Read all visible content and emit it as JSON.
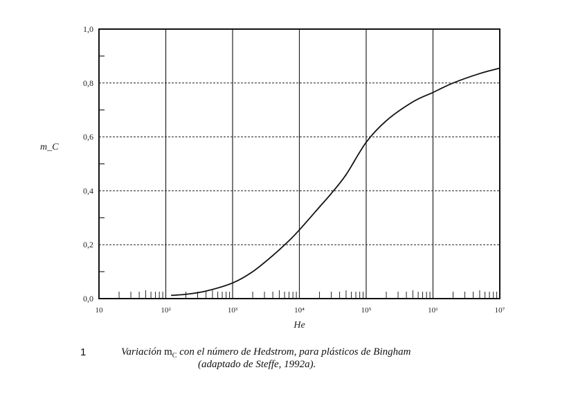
{
  "chart_data": {
    "type": "line",
    "title": "",
    "xlabel": "He",
    "ylabel": "m_C",
    "xscale": "log",
    "xlim": [
      10,
      10000000
    ],
    "ylim": [
      0,
      1
    ],
    "grid": {
      "x": "solid-decades",
      "y": "dashed"
    },
    "xticks": [
      {
        "v": 10,
        "label": "10"
      },
      {
        "v": 100,
        "label": "10²"
      },
      {
        "v": 1000,
        "label": "10³"
      },
      {
        "v": 10000,
        "label": "10⁴"
      },
      {
        "v": 100000,
        "label": "10⁵"
      },
      {
        "v": 1000000,
        "label": "10⁶"
      },
      {
        "v": 10000000,
        "label": "10⁷"
      }
    ],
    "yticks": [
      {
        "v": 0,
        "label": "0,0"
      },
      {
        "v": 0.2,
        "label": "0,2"
      },
      {
        "v": 0.4,
        "label": "0,4"
      },
      {
        "v": 0.6,
        "label": "0,6"
      },
      {
        "v": 0.8,
        "label": "0,8"
      },
      {
        "v": 1.0,
        "label": "1,0"
      }
    ],
    "series": [
      {
        "name": "m_C",
        "x": [
          120,
          200,
          400,
          1000,
          2000,
          4000,
          7000,
          10000,
          20000,
          30000,
          50000,
          100000,
          200000,
          500000,
          1000000,
          2000000,
          5000000,
          10000000
        ],
        "y": [
          0.012,
          0.016,
          0.028,
          0.058,
          0.1,
          0.16,
          0.215,
          0.255,
          0.34,
          0.39,
          0.46,
          0.58,
          0.66,
          0.73,
          0.765,
          0.8,
          0.835,
          0.855
        ]
      }
    ]
  },
  "caption": {
    "number": "1",
    "line1_pre": "Variación ",
    "line1_sym": "m",
    "line1_sub": "C",
    "line1_post": " con el número de Hedstrom, para plásticos de Bingham",
    "line2": "(adaptado de Steffe, 1992a)."
  }
}
